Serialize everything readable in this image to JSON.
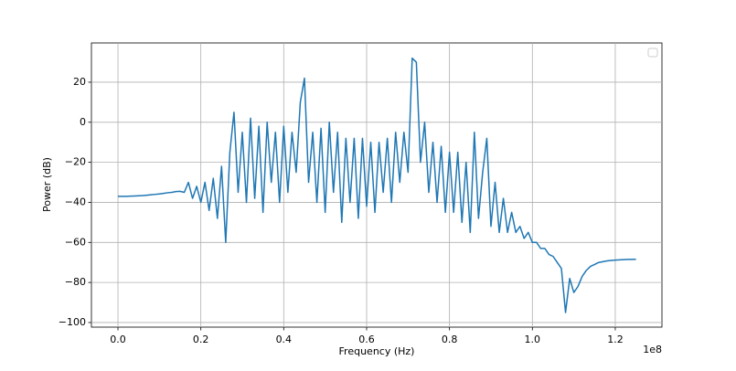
{
  "chart_data": {
    "type": "line",
    "xlabel": "Frequency (Hz)",
    "ylabel": "Power (dB)",
    "x_offset_label": "1e8",
    "color": "#1f77b4",
    "grid": true,
    "xlim": [
      -0.064,
      1.3126
    ],
    "ylim": [
      -102.3,
      39.6
    ],
    "xticks": [
      {
        "value": 0,
        "label": "0.0"
      },
      0.2,
      0.4,
      0.6,
      0.8,
      {
        "value": 1,
        "label": "1.0"
      },
      1.2
    ],
    "yticks": [
      {
        "value": -100,
        "label": "−100"
      },
      {
        "value": -80,
        "label": "−80"
      },
      {
        "value": -60,
        "label": "−60"
      },
      {
        "value": -40,
        "label": "−40"
      },
      {
        "value": -20,
        "label": "−20"
      },
      0,
      20
    ],
    "x": [
      0,
      0.01,
      0.02,
      0.03,
      0.04,
      0.05,
      0.06,
      0.07,
      0.08,
      0.09,
      0.1,
      0.11,
      0.12,
      0.13,
      0.14,
      0.15,
      0.16,
      0.17,
      0.18,
      0.19,
      0.2,
      0.21,
      0.22,
      0.23,
      0.24,
      0.25,
      0.26,
      0.27,
      0.28,
      0.29,
      0.3,
      0.31,
      0.32,
      0.33,
      0.34,
      0.35,
      0.36,
      0.37,
      0.38,
      0.39,
      0.4,
      0.41,
      0.42,
      0.43,
      0.44,
      0.45,
      0.46,
      0.47,
      0.48,
      0.49,
      0.5,
      0.51,
      0.52,
      0.53,
      0.54,
      0.55,
      0.56,
      0.57,
      0.58,
      0.59,
      0.6,
      0.61,
      0.62,
      0.63,
      0.64,
      0.65,
      0.66,
      0.67,
      0.68,
      0.69,
      0.7,
      0.71,
      0.72,
      0.73,
      0.74,
      0.75,
      0.76,
      0.77,
      0.78,
      0.79,
      0.8,
      0.81,
      0.82,
      0.83,
      0.84,
      0.85,
      0.86,
      0.87,
      0.88,
      0.89,
      0.9,
      0.91,
      0.92,
      0.93,
      0.94,
      0.95,
      0.96,
      0.97,
      0.98,
      0.99,
      1,
      1.01,
      1.02,
      1.03,
      1.04,
      1.05,
      1.06,
      1.07,
      1.08,
      1.09,
      1.1,
      1.11,
      1.12,
      1.13,
      1.14,
      1.15,
      1.16,
      1.17,
      1.18,
      1.19,
      1.2,
      1.21,
      1.22,
      1.23,
      1.24,
      1.25
    ],
    "values": [
      -37,
      -37,
      -37,
      -36.9,
      -36.8,
      -36.7,
      -36.6,
      -36.4,
      -36.2,
      -36,
      -35.8,
      -35.5,
      -35.2,
      -35,
      -34.6,
      -34.5,
      -35,
      -30,
      -38,
      -32,
      -40,
      -30,
      -44,
      -28,
      -48,
      -22,
      -60,
      -15,
      5,
      -35,
      -5,
      -40,
      2,
      -38,
      -2,
      -45,
      0,
      -30,
      -5,
      -40,
      -2,
      -35,
      -5,
      -25,
      10,
      22,
      -30,
      -5,
      -40,
      -3,
      -45,
      0,
      -35,
      -5,
      -50,
      -8,
      -40,
      -8,
      -48,
      -8,
      -42,
      -10,
      -45,
      -10,
      -35,
      -8,
      -40,
      -5,
      -30,
      -5,
      -25,
      32,
      30,
      -20,
      0,
      -35,
      -10,
      -40,
      -12,
      -45,
      -15,
      -45,
      -15,
      -50,
      -20,
      -55,
      -5,
      -48,
      -25,
      -8,
      -52,
      -30,
      -55,
      -38,
      -55,
      -45,
      -55,
      -52,
      -58,
      -55,
      -60,
      -60,
      -63,
      -63,
      -66,
      -67,
      -70,
      -73,
      -95,
      -78,
      -85,
      -82,
      -77,
      -74,
      -72,
      -71,
      -70,
      -69.6,
      -69.2,
      -69,
      -68.8,
      -68.7,
      -68.6,
      -68.5,
      -68.5,
      -68.4
    ]
  }
}
